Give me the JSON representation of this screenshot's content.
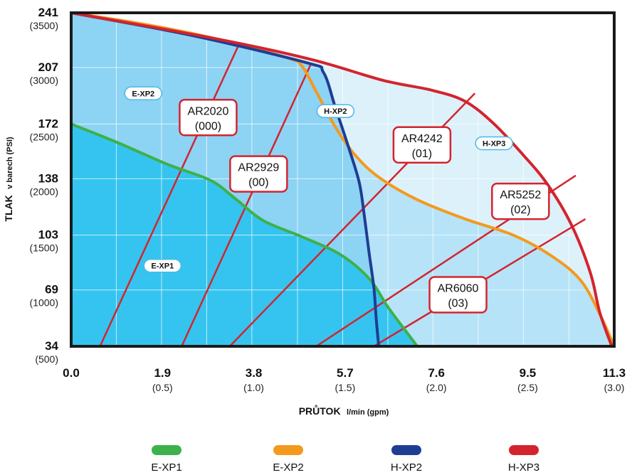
{
  "chart_data": {
    "type": "line",
    "title": "",
    "ylabel_main": "TLAK",
    "ylabel_unit": "v barech (PSI)",
    "xlabel_main": "PRŮTOK",
    "xlabel_unit": "l/min (gpm)",
    "xlim": [
      0,
      11.3
    ],
    "ylim": [
      34,
      241
    ],
    "x_ticks": [
      {
        "value": 0.0,
        "label": "0.0",
        "sub": ""
      },
      {
        "value": 1.9,
        "label": "1.9",
        "sub": "(0.5)"
      },
      {
        "value": 3.8,
        "label": "3.8",
        "sub": "(1.0)"
      },
      {
        "value": 5.7,
        "label": "5.7",
        "sub": "(1.5)"
      },
      {
        "value": 7.6,
        "label": "7.6",
        "sub": "(2.0)"
      },
      {
        "value": 9.5,
        "label": "9.5",
        "sub": "(2.5)"
      },
      {
        "value": 11.3,
        "label": "11.3",
        "sub": "(3.0)"
      }
    ],
    "y_ticks": [
      {
        "value": 241,
        "label": "241",
        "sub": "(3500)"
      },
      {
        "value": 207,
        "label": "207",
        "sub": "(3000)"
      },
      {
        "value": 172,
        "label": "172",
        "sub": "(2500)"
      },
      {
        "value": 138,
        "label": "138",
        "sub": "(2000)"
      },
      {
        "value": 103,
        "label": "103",
        "sub": "(1500)"
      },
      {
        "value": 69,
        "label": "69",
        "sub": "(1000)"
      },
      {
        "value": 34,
        "label": "34",
        "sub": "(500)"
      }
    ],
    "grid": true,
    "legend_position": "bottom",
    "series": [
      {
        "name": "E-XP1",
        "color": "#3db14a",
        "points": [
          [
            0.0,
            172
          ],
          [
            1.0,
            160
          ],
          [
            2.0,
            147
          ],
          [
            2.9,
            137
          ],
          [
            3.4,
            126
          ],
          [
            4.0,
            112
          ],
          [
            4.8,
            102
          ],
          [
            5.6,
            91
          ],
          [
            6.2,
            76
          ],
          [
            6.6,
            58
          ],
          [
            7.0,
            42
          ],
          [
            7.2,
            34
          ]
        ]
      },
      {
        "name": "E-XP2",
        "color": "#f39a1e",
        "points": [
          [
            0.0,
            241
          ],
          [
            1.5,
            234
          ],
          [
            3.0,
            225
          ],
          [
            4.5,
            213
          ],
          [
            4.8,
            208
          ],
          [
            5.1,
            192
          ],
          [
            5.5,
            170
          ],
          [
            5.9,
            153
          ],
          [
            6.4,
            139
          ],
          [
            7.2,
            125
          ],
          [
            8.2,
            113
          ],
          [
            9.2,
            103
          ],
          [
            10.0,
            90
          ],
          [
            10.6,
            75
          ],
          [
            11.0,
            54
          ],
          [
            11.3,
            34
          ]
        ]
      },
      {
        "name": "H-XP2",
        "color": "#1f3d93",
        "points": [
          [
            0.0,
            241
          ],
          [
            2.5,
            227
          ],
          [
            4.9,
            210
          ],
          [
            5.25,
            204
          ],
          [
            5.5,
            182
          ],
          [
            5.8,
            155
          ],
          [
            6.0,
            135
          ],
          [
            6.1,
            115
          ],
          [
            6.2,
            92
          ],
          [
            6.3,
            70
          ],
          [
            6.35,
            50
          ],
          [
            6.4,
            34
          ]
        ]
      },
      {
        "name": "H-XP3",
        "color": "#d3242e",
        "points": [
          [
            0.0,
            241
          ],
          [
            3.0,
            225
          ],
          [
            5.0,
            212
          ],
          [
            6.5,
            199
          ],
          [
            7.5,
            193
          ],
          [
            8.2,
            186
          ],
          [
            8.8,
            172
          ],
          [
            9.4,
            153
          ],
          [
            9.9,
            135
          ],
          [
            10.4,
            110
          ],
          [
            10.8,
            80
          ],
          [
            11.0,
            55
          ],
          [
            11.25,
            34
          ]
        ]
      }
    ],
    "ar_lines": [
      {
        "label": "AR2020",
        "code": "(000)",
        "from": [
          0.6,
          34
        ],
        "to": [
          3.5,
          222
        ],
        "box_at": [
          2.85,
          176
        ]
      },
      {
        "label": "AR2929",
        "code": "(00)",
        "from": [
          2.3,
          34
        ],
        "to": [
          5.0,
          210
        ],
        "box_at": [
          3.9,
          141
        ]
      },
      {
        "label": "AR4242",
        "code": "(01)",
        "from": [
          3.3,
          34
        ],
        "to": [
          8.4,
          191
        ],
        "box_at": [
          7.3,
          159
        ]
      },
      {
        "label": "AR5252",
        "code": "(02)",
        "from": [
          5.1,
          34
        ],
        "to": [
          10.5,
          140
        ],
        "box_at": [
          9.35,
          124
        ]
      },
      {
        "label": "AR6060",
        "code": "(03)",
        "from": [
          6.3,
          34
        ],
        "to": [
          10.7,
          113
        ],
        "box_at": [
          8.05,
          66
        ]
      }
    ],
    "region_labels": [
      {
        "name": "E-XP2",
        "at": [
          1.5,
          191
        ]
      },
      {
        "name": "H-XP2",
        "at": [
          5.5,
          180
        ]
      },
      {
        "name": "H-XP3",
        "at": [
          8.8,
          160
        ]
      },
      {
        "name": "E-XP1",
        "at": [
          1.9,
          84
        ]
      }
    ],
    "region_fills": {
      "hxp3": "#dcf1fa",
      "exp2": "#b6e3f7",
      "hxp2": "#8dd3f4",
      "exp1": "#35c4ef"
    },
    "ar_color": "#d3242e"
  }
}
